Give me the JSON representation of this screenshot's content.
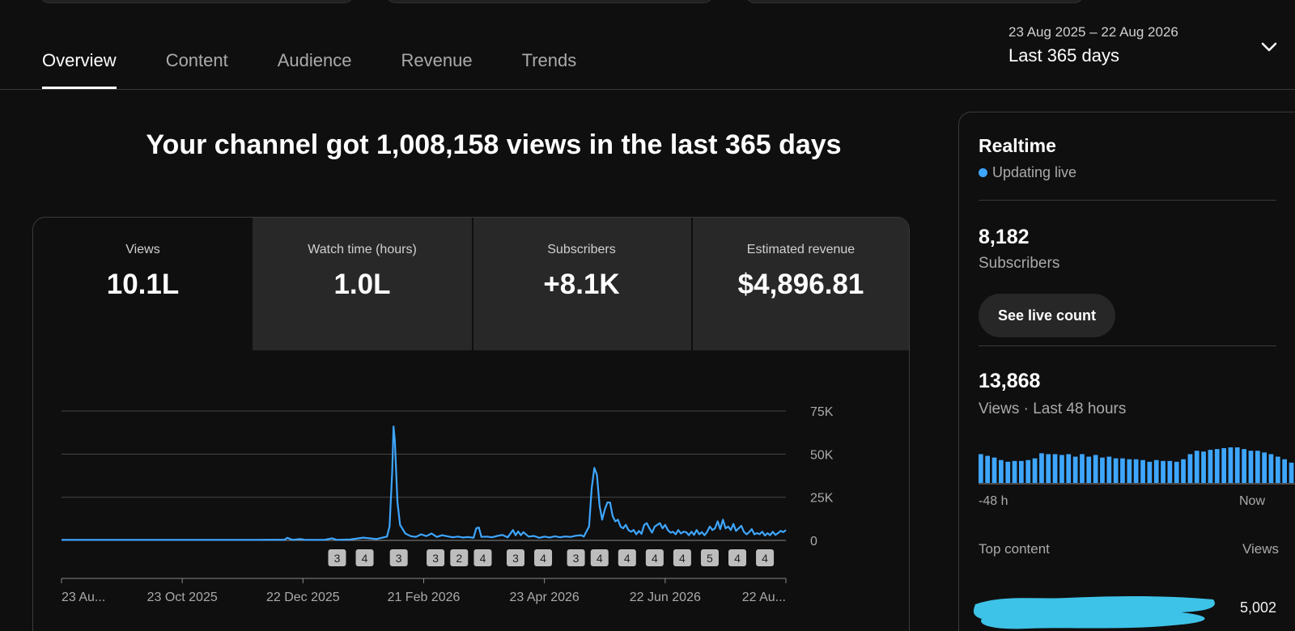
{
  "tabs": [
    {
      "label": "Overview",
      "active": true
    },
    {
      "label": "Content",
      "active": false
    },
    {
      "label": "Audience",
      "active": false
    },
    {
      "label": "Revenue",
      "active": false
    },
    {
      "label": "Trends",
      "active": false
    }
  ],
  "date_range": {
    "dates": "23 Aug 2025 – 22 Aug 2026",
    "label": "Last 365 days"
  },
  "headline": "Your channel got 1,008,158 views in the last 365 days",
  "metrics": [
    {
      "title": "Views",
      "value": "10.1L",
      "selected": true
    },
    {
      "title": "Watch time (hours)",
      "value": "1.0L",
      "selected": false
    },
    {
      "title": "Subscribers",
      "value": "+8.1K",
      "selected": false
    },
    {
      "title": "Estimated revenue",
      "value": "$4,896.81",
      "selected": false
    }
  ],
  "chart_data": {
    "type": "line",
    "yticks": [
      "75K",
      "50K",
      "25K",
      "0"
    ],
    "ylim": [
      0,
      75000
    ],
    "xticks": [
      "23 Au...",
      "23 Oct 2025",
      "22 Dec 2025",
      "21 Feb 2026",
      "23 Apr 2026",
      "22 Jun 2026",
      "22 Au..."
    ],
    "series_color": "#3ea6ff",
    "points": [
      [
        0,
        300
      ],
      [
        50,
        300
      ],
      [
        100,
        300
      ],
      [
        150,
        300
      ],
      [
        170,
        400
      ],
      [
        172,
        1500
      ],
      [
        176,
        300
      ],
      [
        182,
        800
      ],
      [
        186,
        300
      ],
      [
        200,
        300
      ],
      [
        206,
        1200
      ],
      [
        210,
        300
      ],
      [
        220,
        500
      ],
      [
        230,
        1600
      ],
      [
        240,
        800
      ],
      [
        244,
        1500
      ],
      [
        248,
        2200
      ],
      [
        250,
        8000
      ],
      [
        252,
        40000
      ],
      [
        253,
        66000
      ],
      [
        254,
        58000
      ],
      [
        256,
        22000
      ],
      [
        258,
        9000
      ],
      [
        262,
        4000
      ],
      [
        266,
        2500
      ],
      [
        270,
        2000
      ],
      [
        274,
        3500
      ],
      [
        278,
        2500
      ],
      [
        282,
        4000
      ],
      [
        286,
        2000
      ],
      [
        290,
        3000
      ],
      [
        294,
        2400
      ],
      [
        298,
        1800
      ],
      [
        302,
        2200
      ],
      [
        306,
        1700
      ],
      [
        310,
        1900
      ],
      [
        314,
        1500
      ],
      [
        316,
        7000
      ],
      [
        318,
        7500
      ],
      [
        320,
        2000
      ],
      [
        324,
        2200
      ],
      [
        328,
        1800
      ],
      [
        332,
        2600
      ],
      [
        336,
        3200
      ],
      [
        340,
        1800
      ],
      [
        344,
        6000
      ],
      [
        346,
        3000
      ],
      [
        348,
        5200
      ],
      [
        350,
        3000
      ],
      [
        352,
        4800
      ],
      [
        356,
        2200
      ],
      [
        360,
        2600
      ],
      [
        364,
        1500
      ],
      [
        368,
        2200
      ],
      [
        372,
        1700
      ],
      [
        376,
        2400
      ],
      [
        380,
        1800
      ],
      [
        384,
        2300
      ],
      [
        388,
        2000
      ],
      [
        392,
        2700
      ],
      [
        396,
        3000
      ],
      [
        398,
        2200
      ],
      [
        402,
        8000
      ],
      [
        404,
        30000
      ],
      [
        406,
        42000
      ],
      [
        408,
        38000
      ],
      [
        410,
        20000
      ],
      [
        412,
        12000
      ],
      [
        414,
        18000
      ],
      [
        416,
        22000
      ],
      [
        418,
        22000
      ],
      [
        420,
        14000
      ],
      [
        422,
        11000
      ],
      [
        424,
        12000
      ],
      [
        426,
        8000
      ],
      [
        428,
        7000
      ],
      [
        430,
        9000
      ],
      [
        432,
        6000
      ],
      [
        434,
        5000
      ],
      [
        436,
        6000
      ],
      [
        438,
        3500
      ],
      [
        440,
        5500
      ],
      [
        442,
        3800
      ],
      [
        444,
        9000
      ],
      [
        446,
        10000
      ],
      [
        448,
        7000
      ],
      [
        450,
        4500
      ],
      [
        452,
        8000
      ],
      [
        454,
        9000
      ],
      [
        456,
        10000
      ],
      [
        458,
        7000
      ],
      [
        460,
        9000
      ],
      [
        462,
        6000
      ],
      [
        464,
        4500
      ],
      [
        466,
        5000
      ],
      [
        468,
        3500
      ],
      [
        470,
        6000
      ],
      [
        472,
        4000
      ],
      [
        474,
        5000
      ],
      [
        476,
        4800
      ],
      [
        478,
        3000
      ],
      [
        480,
        5000
      ],
      [
        482,
        3200
      ],
      [
        484,
        6000
      ],
      [
        486,
        3500
      ],
      [
        488,
        4800
      ],
      [
        490,
        3000
      ],
      [
        492,
        5000
      ],
      [
        494,
        8000
      ],
      [
        496,
        6000
      ],
      [
        498,
        7000
      ],
      [
        500,
        11000
      ],
      [
        502,
        6500
      ],
      [
        504,
        12000
      ],
      [
        506,
        7000
      ],
      [
        508,
        8000
      ],
      [
        510,
        6000
      ],
      [
        512,
        9500
      ],
      [
        514,
        5500
      ],
      [
        516,
        7000
      ],
      [
        518,
        8500
      ],
      [
        520,
        5000
      ],
      [
        522,
        3500
      ],
      [
        524,
        4800
      ],
      [
        526,
        6500
      ],
      [
        528,
        3500
      ],
      [
        530,
        4200
      ],
      [
        532,
        3600
      ],
      [
        534,
        5000
      ],
      [
        536,
        2800
      ],
      [
        538,
        4200
      ],
      [
        540,
        3000
      ],
      [
        542,
        5000
      ],
      [
        544,
        3200
      ],
      [
        546,
        4200
      ],
      [
        548,
        5500
      ],
      [
        550,
        4800
      ],
      [
        552,
        6000
      ]
    ],
    "x_domain": [
      0,
      552
    ],
    "markers": [
      {
        "label": "3",
        "x": 210
      },
      {
        "label": "4",
        "x": 231
      },
      {
        "label": "3",
        "x": 257
      },
      {
        "label": "3",
        "x": 285
      },
      {
        "label": "2",
        "x": 303
      },
      {
        "label": "4",
        "x": 321
      },
      {
        "label": "3",
        "x": 346
      },
      {
        "label": "4",
        "x": 367
      },
      {
        "label": "3",
        "x": 392
      },
      {
        "label": "4",
        "x": 410
      },
      {
        "label": "4",
        "x": 431
      },
      {
        "label": "4",
        "x": 452
      },
      {
        "label": "4",
        "x": 473
      },
      {
        "label": "5",
        "x": 494
      },
      {
        "label": "4",
        "x": 515
      },
      {
        "label": "4",
        "x": 536
      }
    ]
  },
  "realtime": {
    "title": "Realtime",
    "live_label": "Updating live",
    "subscribers_value": "8,182",
    "subscribers_label": "Subscribers",
    "see_live_label": "See live count",
    "views_value": "13,868",
    "views_label": "Views · Last 48 hours",
    "axis_start": "-48 h",
    "axis_end": "Now",
    "bars": [
      34,
      32,
      30,
      27,
      25,
      26,
      26,
      27,
      29,
      35,
      34,
      34,
      33,
      34,
      31,
      34,
      31,
      33,
      30,
      31,
      29,
      29,
      28,
      28,
      27,
      25,
      27,
      26,
      26,
      25,
      28,
      34,
      38,
      37,
      39,
      40,
      41,
      42,
      42,
      40,
      38,
      38,
      36,
      34,
      31,
      28,
      24
    ],
    "top_content_header": "Top content",
    "views_header": "Views",
    "top_item_views": "5,002"
  }
}
